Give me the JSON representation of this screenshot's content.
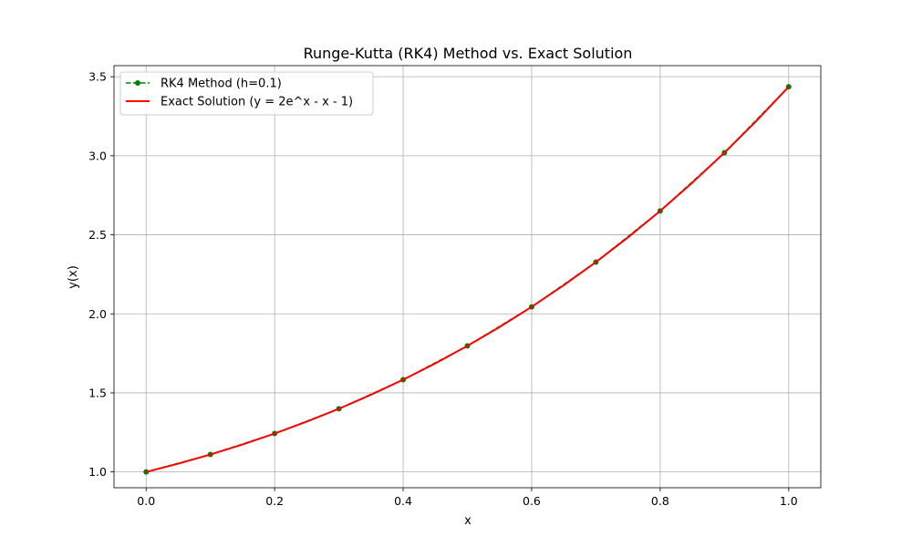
{
  "chart_data": {
    "type": "line",
    "title": "Runge-Kutta (RK4) Method vs. Exact Solution",
    "xlabel": "x",
    "ylabel": "y(x)",
    "xlim": [
      -0.05,
      1.05
    ],
    "ylim": [
      0.9,
      3.57
    ],
    "xticks": [
      "0.0",
      "0.2",
      "0.4",
      "0.6",
      "0.8",
      "1.0"
    ],
    "xtick_values": [
      0.0,
      0.2,
      0.4,
      0.6,
      0.8,
      1.0
    ],
    "yticks": [
      "1.0",
      "1.5",
      "2.0",
      "2.5",
      "3.0",
      "3.5"
    ],
    "ytick_values": [
      1.0,
      1.5,
      2.0,
      2.5,
      3.0,
      3.5
    ],
    "grid": true,
    "legend_position": "top-left",
    "series": [
      {
        "name": "RK4 Method (h=0.1)",
        "style": "dashed-with-markers",
        "color": "#008000",
        "x": [
          0.0,
          0.1,
          0.2,
          0.3,
          0.4,
          0.5,
          0.6,
          0.7,
          0.8,
          0.9,
          1.0
        ],
        "y": [
          1.0,
          1.1103,
          1.2428,
          1.3997,
          1.5836,
          1.7974,
          2.0442,
          2.3275,
          2.6511,
          3.0192,
          3.4366
        ]
      },
      {
        "name": "Exact Solution (y = 2e^x - x - 1)",
        "style": "solid",
        "color": "#ff0000",
        "x": [
          0.0,
          0.05,
          0.1,
          0.15,
          0.2,
          0.25,
          0.3,
          0.35,
          0.4,
          0.45,
          0.5,
          0.55,
          0.6,
          0.65,
          0.7,
          0.75,
          0.8,
          0.85,
          0.9,
          0.95,
          1.0
        ],
        "y": [
          1.0,
          1.0525,
          1.1103,
          1.1737,
          1.2428,
          1.3181,
          1.3997,
          1.4881,
          1.5836,
          1.6865,
          1.7974,
          1.9166,
          2.0442,
          2.1811,
          2.3275,
          2.484,
          2.6511,
          2.8295,
          3.0192,
          3.2215,
          3.4366
        ]
      }
    ]
  }
}
